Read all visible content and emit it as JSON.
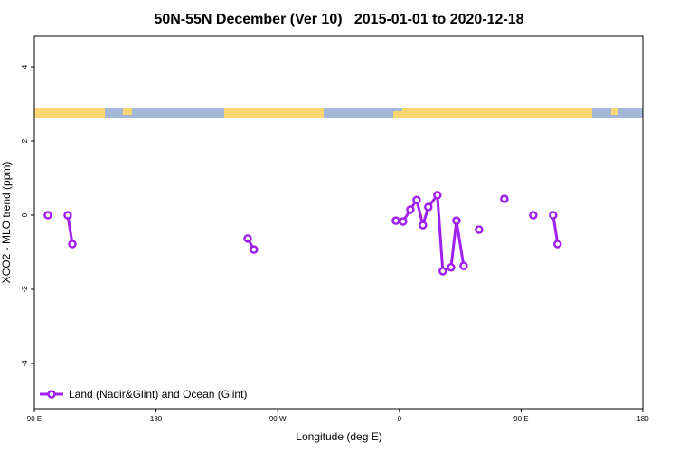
{
  "chart_data": {
    "type": "line",
    "title": "50N-55N December (Ver 10)   2015-01-01 to 2020-12-18",
    "x_label": "Longitude (deg E)",
    "y_label": "XCO2 - MLO trend (ppm)",
    "xlim": [
      90,
      540
    ],
    "xticks": [
      {
        "value": 90,
        "label": "90 E"
      },
      {
        "value": 180,
        "label": "180"
      },
      {
        "value": 270,
        "label": "90 W"
      },
      {
        "value": 360,
        "label": "0"
      },
      {
        "value": 450,
        "label": "90 E"
      },
      {
        "value": 540,
        "label": "180"
      }
    ],
    "ylim": [
      -5.22,
      4.83
    ],
    "yticks": [
      -4,
      -2,
      0,
      2,
      4
    ],
    "grid": false,
    "legend": "bottom-left",
    "x": [
      100.0,
      null,
      114.7,
      118.1,
      null,
      247.8,
      252.4,
      null,
      357.4,
      362.7,
      368.1,
      372.8,
      377.4,
      381.4,
      388.1,
      392.1,
      398.2,
      402.2,
      407.5,
      null,
      418.9,
      null,
      437.6,
      null,
      459.0,
      null,
      473.7,
      477.0
    ],
    "series": [
      {
        "name": "Land (Nadir&Glint) and Ocean (Glint)",
        "color": "#a020f0",
        "values": [
          0.0,
          null,
          0.0,
          -0.78,
          null,
          -0.63,
          -0.93,
          null,
          -0.15,
          -0.17,
          0.15,
          0.41,
          -0.27,
          0.22,
          0.54,
          -1.51,
          -1.41,
          -0.15,
          -1.37,
          null,
          -0.39,
          null,
          0.44,
          null,
          0.0,
          null,
          0.0,
          -0.78
        ]
      }
    ]
  }
}
